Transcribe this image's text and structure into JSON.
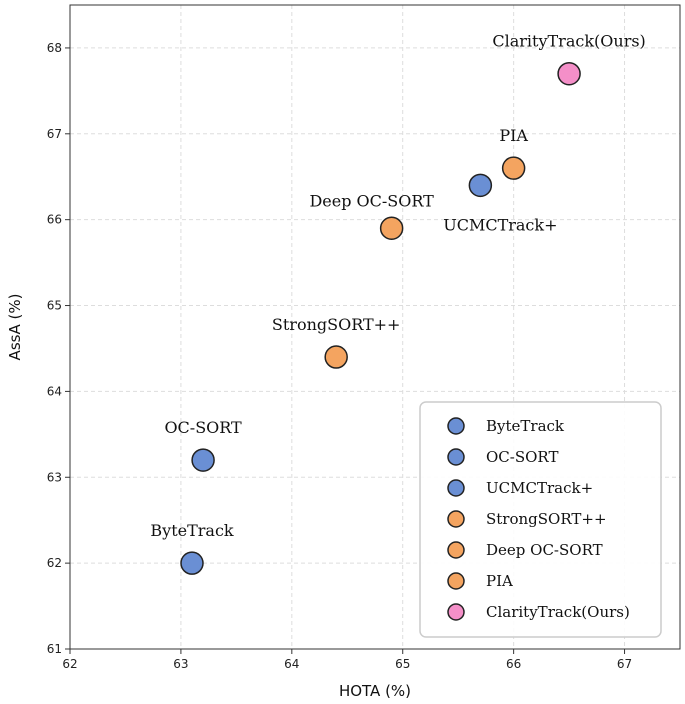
{
  "chart_data": {
    "type": "scatter",
    "xlabel": "HOTA (%)",
    "ylabel": "AssA (%)",
    "xlim": [
      62,
      67.5
    ],
    "ylim": [
      61,
      68.5
    ],
    "xticks": [
      62,
      63,
      64,
      65,
      66,
      67
    ],
    "yticks": [
      61,
      62,
      63,
      64,
      65,
      66,
      67,
      68
    ],
    "grid": true,
    "legend_position": "bottom-right",
    "colors": {
      "blue": "#6a8fd4",
      "orange": "#f4a460",
      "pink": "#f48fc8",
      "edge": "#222222",
      "grid": "#dddddd"
    },
    "points": [
      {
        "name": "ByteTrack",
        "x": 63.1,
        "y": 62.0,
        "color": "blue",
        "label": "ByteTrack",
        "label_pos": "above"
      },
      {
        "name": "OC-SORT",
        "x": 63.2,
        "y": 63.2,
        "color": "blue",
        "label": "OC-SORT",
        "label_pos": "above"
      },
      {
        "name": "UCMCTrack+",
        "x": 65.7,
        "y": 66.4,
        "color": "blue",
        "label": "UCMCTrack+",
        "label_pos": "below-right"
      },
      {
        "name": "StrongSORT++",
        "x": 64.4,
        "y": 64.4,
        "color": "orange",
        "label": "StrongSORT++",
        "label_pos": "above"
      },
      {
        "name": "Deep OC-SORT",
        "x": 64.9,
        "y": 65.9,
        "color": "orange",
        "label": "Deep OC-SORT",
        "label_pos": "above-left"
      },
      {
        "name": "PIA",
        "x": 66.0,
        "y": 66.6,
        "color": "orange",
        "label": "PIA",
        "label_pos": "above"
      },
      {
        "name": "ClarityTrack(Ours)",
        "x": 66.5,
        "y": 67.7,
        "color": "pink",
        "label": "ClarityTrack(Ours)",
        "label_pos": "above"
      }
    ],
    "legend": [
      {
        "label": "ByteTrack",
        "color": "blue"
      },
      {
        "label": "OC-SORT",
        "color": "blue"
      },
      {
        "label": "UCMCTrack+",
        "color": "blue"
      },
      {
        "label": "StrongSORT++",
        "color": "orange"
      },
      {
        "label": "Deep OC-SORT",
        "color": "orange"
      },
      {
        "label": "PIA",
        "color": "orange"
      },
      {
        "label": "ClarityTrack(Ours)",
        "color": "pink"
      }
    ]
  }
}
